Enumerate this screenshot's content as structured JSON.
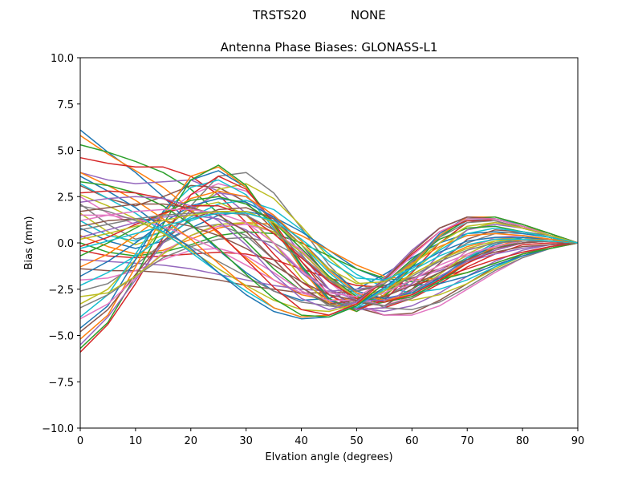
{
  "suptitle_left": "TRSTS20",
  "suptitle_right": "NONE",
  "chart_data": {
    "type": "line",
    "title": "Antenna Phase Biases: GLONASS-L1",
    "xlabel": "Elvation angle (degrees)",
    "ylabel": "Bias (mm)",
    "xlim": [
      0,
      90
    ],
    "ylim": [
      -10,
      10
    ],
    "xticks": [
      0,
      10,
      20,
      30,
      40,
      50,
      60,
      70,
      80,
      90
    ],
    "xtick_labels": [
      "0",
      "10",
      "20",
      "30",
      "40",
      "50",
      "60",
      "70",
      "80",
      "90"
    ],
    "yticks": [
      -10,
      -7.5,
      -5,
      -2.5,
      0,
      2.5,
      5,
      7.5,
      10
    ],
    "ytick_labels": [
      "−10.0",
      "−7.5",
      "−5.0",
      "−2.5",
      "0.0",
      "2.5",
      "5.0",
      "7.5",
      "10.0"
    ],
    "grid": false,
    "x": [
      0,
      5,
      10,
      15,
      20,
      25,
      30,
      35,
      40,
      45,
      50,
      55,
      60,
      65,
      70,
      75,
      80,
      85,
      90
    ],
    "colors": [
      "#1f77b4",
      "#ff7f0e",
      "#2ca02c",
      "#d62728",
      "#9467bd",
      "#8c564b",
      "#e377c2",
      "#7f7f7f",
      "#bcbd22",
      "#17becf"
    ],
    "series": [
      {
        "values": [
          6.1,
          4.9,
          3.8,
          2.5,
          1.0,
          -0.4,
          -1.6,
          -2.6,
          -3.1,
          -3.0,
          -2.5,
          -1.7,
          -0.8,
          0.0,
          0.5,
          0.6,
          0.5,
          0.3,
          0.0
        ]
      },
      {
        "values": [
          5.8,
          4.8,
          3.9,
          3.0,
          1.8,
          0.5,
          -0.8,
          -2.0,
          -2.8,
          -3.1,
          -3.0,
          -2.5,
          -1.7,
          -0.9,
          -0.2,
          0.2,
          0.3,
          0.2,
          0.0
        ]
      },
      {
        "values": [
          5.3,
          4.9,
          4.4,
          3.8,
          2.9,
          1.6,
          0.1,
          -1.4,
          -2.6,
          -3.3,
          -3.5,
          -3.2,
          -2.5,
          -1.6,
          -0.8,
          -0.2,
          0.1,
          0.1,
          0.0
        ]
      },
      {
        "values": [
          4.6,
          4.3,
          4.1,
          4.1,
          3.6,
          2.6,
          1.1,
          -0.6,
          -2.1,
          -3.1,
          -3.6,
          -3.5,
          -3.0,
          -2.2,
          -1.3,
          -0.6,
          -0.1,
          0.0,
          0.0
        ]
      },
      {
        "values": [
          3.8,
          3.4,
          3.2,
          3.3,
          3.4,
          2.8,
          1.6,
          0.0,
          -1.6,
          -2.8,
          -3.5,
          -3.7,
          -3.4,
          -2.7,
          -1.8,
          -1.0,
          -0.4,
          -0.1,
          0.0
        ]
      },
      {
        "values": [
          3.1,
          2.4,
          2.0,
          2.5,
          3.1,
          3.0,
          2.2,
          0.7,
          -1.0,
          -2.5,
          -3.5,
          -3.9,
          -3.8,
          -3.1,
          -2.2,
          -1.3,
          -0.6,
          -0.2,
          0.0
        ]
      },
      {
        "values": [
          2.5,
          1.6,
          1.0,
          1.5,
          2.6,
          3.2,
          2.8,
          1.4,
          -0.4,
          -2.1,
          -3.3,
          -3.9,
          -3.9,
          -3.4,
          -2.5,
          -1.6,
          -0.8,
          -0.3,
          0.0
        ]
      },
      {
        "values": [
          2.1,
          1.0,
          0.2,
          0.6,
          2.0,
          3.6,
          3.8,
          2.7,
          0.8,
          -1.2,
          -2.7,
          -3.5,
          -3.6,
          -3.2,
          -2.4,
          -1.5,
          -0.8,
          -0.3,
          0.0
        ]
      },
      {
        "values": [
          1.6,
          0.6,
          -0.1,
          0.4,
          1.6,
          2.9,
          3.2,
          2.4,
          0.9,
          -0.8,
          -2.1,
          -2.9,
          -3.1,
          -2.8,
          -2.2,
          -1.4,
          -0.7,
          -0.3,
          0.0
        ]
      },
      {
        "values": [
          1.2,
          0.4,
          0.1,
          0.6,
          1.4,
          2.1,
          2.3,
          1.8,
          0.7,
          -0.6,
          -1.7,
          -2.4,
          -2.7,
          -2.5,
          -2.0,
          -1.3,
          -0.7,
          -0.3,
          0.0
        ]
      },
      {
        "values": [
          0.8,
          0.1,
          -0.3,
          0.1,
          0.8,
          1.5,
          1.7,
          1.4,
          0.6,
          -0.4,
          -1.4,
          -2.0,
          -2.3,
          -2.2,
          -1.8,
          -1.2,
          -0.7,
          -0.3,
          0.0
        ]
      },
      {
        "values": [
          0.4,
          -0.2,
          -0.6,
          -0.4,
          0.2,
          0.8,
          1.1,
          1.0,
          0.4,
          -0.4,
          -1.2,
          -1.8,
          -2.0,
          -1.9,
          -1.6,
          -1.1,
          -0.6,
          -0.3,
          0.0
        ]
      },
      {
        "values": [
          0.0,
          -0.5,
          -0.7,
          -0.5,
          -0.1,
          0.4,
          0.6,
          0.5,
          0.0,
          -0.7,
          -1.4,
          -1.9,
          -2.1,
          -2.0,
          -1.6,
          -1.1,
          -0.6,
          -0.3,
          0.0
        ]
      },
      {
        "values": [
          -0.4,
          -0.7,
          -0.8,
          -0.7,
          -0.6,
          -0.5,
          -0.6,
          -0.9,
          -1.4,
          -1.9,
          -2.3,
          -2.4,
          -2.3,
          -1.9,
          -1.4,
          -0.9,
          -0.5,
          -0.2,
          0.0
        ]
      },
      {
        "values": [
          -0.9,
          -1.0,
          -1.1,
          -1.2,
          -1.4,
          -1.7,
          -2.0,
          -2.3,
          -2.5,
          -2.6,
          -2.5,
          -2.3,
          -1.9,
          -1.5,
          -1.0,
          -0.6,
          -0.3,
          -0.1,
          0.0
        ]
      },
      {
        "values": [
          -1.4,
          -1.5,
          -1.5,
          -1.6,
          -1.8,
          -2.0,
          -2.3,
          -2.5,
          -2.7,
          -2.7,
          -2.6,
          -2.3,
          -1.9,
          -1.4,
          -0.9,
          -0.5,
          -0.2,
          -0.1,
          0.0
        ]
      },
      {
        "values": [
          -2.0,
          -1.9,
          -1.5,
          -0.9,
          -0.4,
          -0.3,
          -0.7,
          -1.6,
          -2.6,
          -3.2,
          -3.3,
          -2.9,
          -2.2,
          -1.4,
          -0.7,
          -0.2,
          0.0,
          0.1,
          0.0
        ]
      },
      {
        "values": [
          -2.6,
          -2.2,
          -1.2,
          0.0,
          0.8,
          1.0,
          0.4,
          -0.9,
          -2.4,
          -3.4,
          -3.6,
          -3.0,
          -2.0,
          -0.9,
          0.0,
          0.5,
          0.6,
          0.4,
          0.0
        ]
      },
      {
        "values": [
          -3.3,
          -2.5,
          -0.9,
          0.8,
          1.9,
          2.2,
          1.5,
          0.0,
          -1.9,
          -3.3,
          -3.6,
          -2.9,
          -1.6,
          -0.3,
          0.7,
          1.1,
          0.9,
          0.5,
          0.0
        ]
      },
      {
        "values": [
          -4.0,
          -2.8,
          -0.6,
          1.6,
          3.0,
          3.4,
          2.6,
          0.8,
          -1.4,
          -3.1,
          -3.5,
          -2.6,
          -1.0,
          0.4,
          1.2,
          1.3,
          1.0,
          0.5,
          0.0
        ]
      },
      {
        "values": [
          -4.6,
          -3.4,
          -0.9,
          1.7,
          3.4,
          3.9,
          3.0,
          1.0,
          -1.3,
          -3.1,
          -3.6,
          -2.8,
          -1.1,
          0.5,
          1.4,
          1.4,
          1.0,
          0.5,
          0.0
        ]
      },
      {
        "values": [
          -5.2,
          -3.9,
          -1.3,
          1.5,
          3.6,
          4.1,
          3.0,
          0.9,
          -1.4,
          -3.2,
          -3.7,
          -2.8,
          -1.2,
          0.4,
          1.4,
          1.4,
          1.0,
          0.5,
          0.0
        ]
      },
      {
        "values": [
          -5.7,
          -4.3,
          -1.8,
          1.0,
          3.4,
          4.2,
          3.1,
          1.0,
          -1.2,
          -3.0,
          -3.7,
          -2.9,
          -1.3,
          0.3,
          1.3,
          1.4,
          1.0,
          0.5,
          0.0
        ]
      },
      {
        "values": [
          -5.9,
          -4.4,
          -2.2,
          0.3,
          2.6,
          3.6,
          2.9,
          1.1,
          -1.0,
          -2.8,
          -3.6,
          -3.1,
          -1.6,
          0.0,
          1.1,
          1.3,
          0.9,
          0.4,
          0.0
        ]
      },
      {
        "values": [
          -5.5,
          -4.0,
          -2.0,
          0.0,
          1.8,
          2.7,
          2.5,
          1.3,
          -0.6,
          -2.5,
          -3.6,
          -3.5,
          -2.2,
          -0.6,
          0.7,
          1.0,
          0.8,
          0.4,
          0.0
        ]
      },
      {
        "values": [
          -4.8,
          -3.6,
          -1.7,
          0.1,
          1.3,
          1.8,
          1.9,
          1.3,
          -0.1,
          -1.9,
          -3.2,
          -3.4,
          -2.5,
          -1.1,
          0.2,
          0.7,
          0.6,
          0.3,
          0.0
        ]
      },
      {
        "values": [
          -4.1,
          -3.3,
          -1.9,
          -0.5,
          0.4,
          0.9,
          1.0,
          0.6,
          -0.4,
          -1.8,
          -3.0,
          -3.4,
          -2.9,
          -1.7,
          -0.4,
          0.3,
          0.4,
          0.2,
          0.0
        ]
      },
      {
        "values": [
          -3.5,
          -2.8,
          -1.8,
          -0.8,
          -0.2,
          0.2,
          0.3,
          0.0,
          -0.8,
          -2.0,
          -3.1,
          -3.4,
          -3.0,
          -2.0,
          -0.8,
          0.0,
          0.2,
          0.1,
          0.0
        ]
      },
      {
        "values": [
          -2.9,
          -2.7,
          -1.8,
          -0.6,
          0.4,
          1.0,
          1.1,
          0.6,
          -0.5,
          -1.9,
          -3.0,
          -3.2,
          -2.7,
          -1.7,
          -0.6,
          0.1,
          0.3,
          0.2,
          0.0
        ]
      },
      {
        "values": [
          -2.3,
          -1.6,
          -0.7,
          0.3,
          1.2,
          1.7,
          1.7,
          1.1,
          -0.1,
          -1.6,
          -2.8,
          -3.2,
          -2.8,
          -1.9,
          -0.8,
          0.0,
          0.3,
          0.2,
          0.0
        ]
      },
      {
        "values": [
          -1.8,
          -1.0,
          0.0,
          1.1,
          2.0,
          2.4,
          2.2,
          1.4,
          0.1,
          -1.4,
          -2.6,
          -3.0,
          -2.7,
          -1.9,
          -0.9,
          -0.1,
          0.3,
          0.2,
          0.0
        ]
      },
      {
        "values": [
          -1.3,
          -0.6,
          0.4,
          1.5,
          2.4,
          2.8,
          2.5,
          1.5,
          0.1,
          -1.5,
          -2.7,
          -3.1,
          -2.8,
          -2.0,
          -1.0,
          -0.2,
          0.2,
          0.2,
          0.0
        ]
      },
      {
        "values": [
          -0.7,
          0.0,
          0.8,
          1.6,
          2.3,
          2.5,
          2.1,
          1.1,
          -0.3,
          -1.8,
          -2.9,
          -3.2,
          -2.9,
          -2.1,
          -1.1,
          -0.3,
          0.1,
          0.1,
          0.0
        ]
      },
      {
        "values": [
          -0.2,
          0.3,
          1.0,
          1.6,
          2.0,
          2.0,
          1.5,
          0.5,
          -0.8,
          -2.1,
          -3.0,
          -3.2,
          -2.8,
          -2.0,
          -1.1,
          -0.4,
          0.0,
          0.1,
          0.0
        ]
      },
      {
        "values": [
          0.3,
          0.7,
          1.1,
          1.4,
          1.5,
          1.3,
          0.7,
          -0.3,
          -1.5,
          -2.5,
          -3.1,
          -3.1,
          -2.6,
          -1.8,
          -1.0,
          -0.4,
          0.0,
          0.1,
          0.0
        ]
      },
      {
        "values": [
          0.9,
          1.2,
          1.3,
          1.2,
          0.9,
          0.4,
          -0.3,
          -1.2,
          -2.1,
          -2.8,
          -3.1,
          -2.9,
          -2.3,
          -1.6,
          -0.9,
          -0.3,
          0.0,
          0.1,
          0.0
        ]
      },
      {
        "values": [
          1.5,
          1.5,
          1.3,
          0.9,
          0.3,
          -0.4,
          -1.2,
          -2.0,
          -2.7,
          -3.1,
          -3.1,
          -2.7,
          -2.0,
          -1.2,
          -0.6,
          -0.2,
          0.1,
          0.1,
          0.0
        ]
      },
      {
        "values": [
          2.0,
          1.7,
          1.2,
          0.6,
          -0.2,
          -1.0,
          -1.8,
          -2.6,
          -3.2,
          -3.4,
          -3.2,
          -2.6,
          -1.8,
          -1.0,
          -0.4,
          0.0,
          0.1,
          0.1,
          0.0
        ]
      },
      {
        "values": [
          2.6,
          2.0,
          1.3,
          0.5,
          -0.4,
          -1.4,
          -2.3,
          -3.1,
          -3.6,
          -3.7,
          -3.3,
          -2.6,
          -1.7,
          -0.9,
          -0.3,
          0.1,
          0.2,
          0.1,
          0.0
        ]
      },
      {
        "values": [
          3.2,
          2.4,
          1.6,
          0.6,
          -0.5,
          -1.6,
          -2.6,
          -3.5,
          -4.0,
          -3.9,
          -3.4,
          -2.5,
          -1.5,
          -0.7,
          -0.1,
          0.2,
          0.2,
          0.1,
          0.0
        ]
      },
      {
        "values": [
          3.6,
          2.8,
          1.9,
          0.8,
          -0.3,
          -1.6,
          -2.8,
          -3.7,
          -4.1,
          -4.0,
          -3.4,
          -2.4,
          -1.3,
          -0.5,
          0.1,
          0.3,
          0.3,
          0.2,
          0.0
        ]
      },
      {
        "values": [
          3.8,
          3.1,
          2.3,
          1.3,
          0.2,
          -1.1,
          -2.4,
          -3.5,
          -4.0,
          -3.9,
          -3.3,
          -2.2,
          -1.1,
          -0.2,
          0.4,
          0.5,
          0.4,
          0.2,
          0.0
        ]
      },
      {
        "values": [
          3.3,
          3.1,
          2.7,
          2.0,
          1.0,
          -0.3,
          -1.7,
          -3.0,
          -3.9,
          -4.0,
          -3.4,
          -2.2,
          -0.9,
          0.2,
          0.8,
          0.9,
          0.6,
          0.3,
          0.0
        ]
      },
      {
        "values": [
          2.7,
          2.8,
          2.7,
          2.4,
          1.7,
          0.6,
          -0.9,
          -2.4,
          -3.6,
          -3.9,
          -3.3,
          -2.0,
          -0.6,
          0.6,
          1.2,
          1.2,
          0.8,
          0.4,
          0.0
        ]
      },
      {
        "values": [
          2.2,
          2.4,
          2.5,
          2.4,
          2.0,
          1.2,
          -0.1,
          -1.7,
          -3.0,
          -3.6,
          -3.2,
          -1.9,
          -0.4,
          0.8,
          1.4,
          1.3,
          0.9,
          0.4,
          0.0
        ]
      },
      {
        "values": [
          1.7,
          1.9,
          2.1,
          2.1,
          1.9,
          1.5,
          0.6,
          -0.9,
          -2.4,
          -3.3,
          -3.1,
          -2.0,
          -0.5,
          0.8,
          1.4,
          1.3,
          0.9,
          0.4,
          0.0
        ]
      },
      {
        "values": [
          1.2,
          1.5,
          1.7,
          1.8,
          1.8,
          1.6,
          1.1,
          0.0,
          -1.5,
          -2.7,
          -2.9,
          -2.1,
          -0.7,
          0.6,
          1.3,
          1.3,
          0.9,
          0.4,
          0.0
        ]
      },
      {
        "values": [
          0.7,
          1.0,
          1.3,
          1.5,
          1.6,
          1.7,
          1.5,
          0.7,
          -0.7,
          -2.0,
          -2.6,
          -2.2,
          -1.0,
          0.3,
          1.1,
          1.2,
          0.8,
          0.4,
          0.0
        ]
      },
      {
        "values": [
          0.2,
          0.5,
          0.9,
          1.2,
          1.5,
          1.7,
          1.7,
          1.1,
          -0.1,
          -1.4,
          -2.2,
          -2.1,
          -1.2,
          0.0,
          0.9,
          1.1,
          0.8,
          0.4,
          0.0
        ]
      },
      {
        "values": [
          -0.3,
          0.1,
          0.5,
          0.9,
          1.3,
          1.6,
          1.6,
          1.2,
          0.2,
          -1.0,
          -1.9,
          -2.0,
          -1.4,
          -0.4,
          0.5,
          0.8,
          0.6,
          0.3,
          0.0
        ]
      }
    ]
  }
}
